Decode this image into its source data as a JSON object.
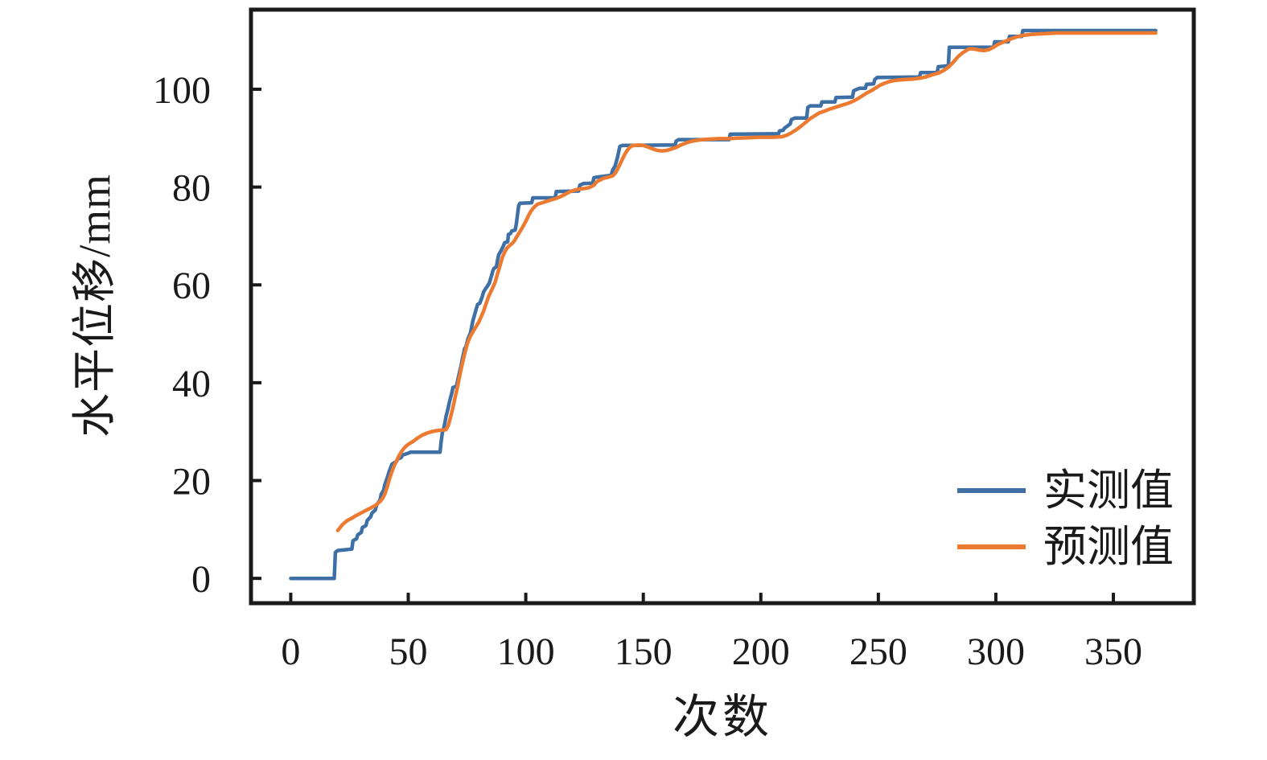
{
  "chart_data": {
    "type": "line",
    "title": "",
    "xlabel": "次数",
    "ylabel": "水平位移/mm",
    "xlim": [
      -17.6,
      384.9
    ],
    "ylim": [
      -5.4,
      116.6
    ],
    "xticks": [
      0,
      50,
      100,
      150,
      200,
      250,
      300,
      350
    ],
    "yticks": [
      0,
      20,
      40,
      60,
      80,
      100
    ],
    "grid": false,
    "legend_position": "lower right",
    "axis_color": "#1a1a1a",
    "series": [
      {
        "name": "实测值",
        "color": "#3e70a6",
        "style": "staircase",
        "points": [
          [
            0,
            0
          ],
          [
            18.5,
            0
          ],
          [
            19,
            5.3
          ],
          [
            20,
            5.7
          ],
          [
            26,
            6
          ],
          [
            26.5,
            7.7
          ],
          [
            28,
            8.1
          ],
          [
            28.5,
            8.9
          ],
          [
            30,
            9.4
          ],
          [
            30.5,
            10.4
          ],
          [
            32,
            10.8
          ],
          [
            32.5,
            11.8
          ],
          [
            34,
            12.6
          ],
          [
            34.5,
            13.3
          ],
          [
            36,
            14
          ],
          [
            36.5,
            15
          ],
          [
            38,
            16
          ],
          [
            38.5,
            17.2
          ],
          [
            39.5,
            18
          ],
          [
            40,
            19.1
          ],
          [
            41,
            20.5
          ],
          [
            42,
            22
          ],
          [
            43,
            23.3
          ],
          [
            43.5,
            23.5
          ],
          [
            45,
            23.9
          ],
          [
            45.5,
            24.4
          ],
          [
            47,
            24.7
          ],
          [
            47.5,
            25.2
          ],
          [
            50,
            25.6
          ],
          [
            51,
            25.8
          ],
          [
            63.5,
            25.8
          ],
          [
            64,
            28
          ],
          [
            64.5,
            29.8
          ],
          [
            65,
            30.5
          ],
          [
            65.5,
            31.6
          ],
          [
            66,
            33
          ],
          [
            67,
            34.9
          ],
          [
            67.5,
            36
          ],
          [
            68.5,
            37.9
          ],
          [
            69,
            39
          ],
          [
            70.5,
            39.3
          ],
          [
            71,
            40.4
          ],
          [
            71.5,
            41.5
          ],
          [
            72.5,
            43.5
          ],
          [
            73,
            44.8
          ],
          [
            74,
            47
          ],
          [
            74.5,
            47.3
          ],
          [
            75.5,
            49.1
          ],
          [
            76.5,
            50.2
          ],
          [
            77,
            51.5
          ],
          [
            77.5,
            52.7
          ],
          [
            78,
            53.5
          ],
          [
            79,
            55.2
          ],
          [
            79.5,
            56
          ],
          [
            80.5,
            56.3
          ],
          [
            81.5,
            57.6
          ],
          [
            82,
            58.5
          ],
          [
            83,
            59.3
          ],
          [
            83.5,
            59.6
          ],
          [
            84.5,
            60.4
          ],
          [
            85,
            61.2
          ],
          [
            85.5,
            62
          ],
          [
            86,
            62.9
          ],
          [
            86.5,
            63.4
          ],
          [
            87.5,
            63.7
          ],
          [
            88,
            65.1
          ],
          [
            88.5,
            66.2
          ],
          [
            89.5,
            67
          ],
          [
            90.5,
            68
          ],
          [
            91,
            68.6
          ],
          [
            92.3,
            68.8
          ],
          [
            92.6,
            70.3
          ],
          [
            93.5,
            70.5
          ],
          [
            94,
            71
          ],
          [
            95.5,
            71.2
          ],
          [
            96,
            72.5
          ],
          [
            96.5,
            74.5
          ],
          [
            97,
            76.2
          ],
          [
            97.5,
            76.7
          ],
          [
            102.5,
            76.8
          ],
          [
            103,
            77.8
          ],
          [
            112.5,
            77.8
          ],
          [
            113,
            79.1
          ],
          [
            122.5,
            79.2
          ],
          [
            123,
            80.4
          ],
          [
            124.5,
            80.7
          ],
          [
            128.5,
            80.8
          ],
          [
            129,
            81.9
          ],
          [
            130,
            82
          ],
          [
            136.3,
            82.4
          ],
          [
            137,
            83.5
          ],
          [
            138,
            84.3
          ],
          [
            139,
            86
          ],
          [
            140,
            88.3
          ],
          [
            141,
            88.5
          ],
          [
            163.5,
            88.6
          ],
          [
            164,
            89.4
          ],
          [
            165,
            89.7
          ],
          [
            186.5,
            89.7
          ],
          [
            187,
            90.8
          ],
          [
            207.5,
            90.9
          ],
          [
            208,
            91.5
          ],
          [
            209.5,
            91.6
          ],
          [
            210,
            92
          ],
          [
            212.5,
            92.9
          ],
          [
            213,
            93.8
          ],
          [
            214.5,
            94.1
          ],
          [
            219.5,
            94.1
          ],
          [
            220,
            96.3
          ],
          [
            221,
            96.6
          ],
          [
            225.5,
            96.6
          ],
          [
            226,
            97.4
          ],
          [
            231.5,
            97.4
          ],
          [
            232,
            98.3
          ],
          [
            239,
            98.4
          ],
          [
            239.5,
            99.7
          ],
          [
            242,
            100.2
          ],
          [
            244.5,
            100.2
          ],
          [
            245,
            101
          ],
          [
            248,
            101.1
          ],
          [
            248.5,
            102
          ],
          [
            249.5,
            102.4
          ],
          [
            267.5,
            102.5
          ],
          [
            268,
            103.4
          ],
          [
            275,
            103.4
          ],
          [
            275.5,
            104.6
          ],
          [
            279.8,
            104.8
          ],
          [
            280.2,
            108.6
          ],
          [
            299,
            108.6
          ],
          [
            299.5,
            109.7
          ],
          [
            305.3,
            109.7
          ],
          [
            305.8,
            110.8
          ],
          [
            311,
            110.8
          ],
          [
            311.5,
            112
          ],
          [
            368,
            112
          ]
        ]
      },
      {
        "name": "预测值",
        "color": "#ec7a31",
        "style": "smooth",
        "points": [
          [
            20,
            9.8
          ],
          [
            22,
            11
          ],
          [
            24,
            11.8
          ],
          [
            26,
            12.3
          ],
          [
            28,
            12.9
          ],
          [
            30,
            13.4
          ],
          [
            32,
            13.9
          ],
          [
            34,
            14.4
          ],
          [
            36,
            14.9
          ],
          [
            38,
            15.7
          ],
          [
            39,
            16.3
          ],
          [
            40,
            17.2
          ],
          [
            41,
            18.6
          ],
          [
            42,
            20.3
          ],
          [
            43,
            21.8
          ],
          [
            44,
            23
          ],
          [
            45,
            24
          ],
          [
            46,
            25
          ],
          [
            47,
            25.8
          ],
          [
            48,
            26.5
          ],
          [
            49,
            27
          ],
          [
            50,
            27.4
          ],
          [
            52,
            28
          ],
          [
            54,
            28.7
          ],
          [
            56,
            29.3
          ],
          [
            58,
            29.7
          ],
          [
            60,
            30
          ],
          [
            62,
            30.2
          ],
          [
            64,
            30.3
          ],
          [
            66,
            30.4
          ],
          [
            67,
            31.2
          ],
          [
            68,
            33
          ],
          [
            69,
            34.9
          ],
          [
            70,
            37.1
          ],
          [
            71,
            39.3
          ],
          [
            72,
            41.7
          ],
          [
            73,
            43.9
          ],
          [
            74,
            45.9
          ],
          [
            75,
            47.8
          ],
          [
            76,
            49.1
          ],
          [
            77,
            50
          ],
          [
            78,
            50.8
          ],
          [
            79,
            51.6
          ],
          [
            80,
            52.4
          ],
          [
            81,
            53.5
          ],
          [
            82,
            54.6
          ],
          [
            83,
            56
          ],
          [
            84,
            57.4
          ],
          [
            85,
            58.5
          ],
          [
            86,
            59.5
          ],
          [
            87,
            60.6
          ],
          [
            88,
            62.3
          ],
          [
            89,
            63.9
          ],
          [
            90,
            65.6
          ],
          [
            91,
            66.7
          ],
          [
            92,
            67.5
          ],
          [
            93,
            68
          ],
          [
            94,
            68.4
          ],
          [
            95,
            68.9
          ],
          [
            96,
            69.7
          ],
          [
            97,
            70.5
          ],
          [
            98,
            71.3
          ],
          [
            99,
            72.1
          ],
          [
            100,
            73
          ],
          [
            101,
            74
          ],
          [
            102,
            74.9
          ],
          [
            103,
            75.6
          ],
          [
            104,
            76.1
          ],
          [
            105,
            76.5
          ],
          [
            107,
            76.8
          ],
          [
            109,
            77.1
          ],
          [
            111,
            77.4
          ],
          [
            113,
            77.7
          ],
          [
            115,
            78.1
          ],
          [
            117,
            78.6
          ],
          [
            119,
            79.1
          ],
          [
            121,
            79.4
          ],
          [
            123,
            79.6
          ],
          [
            125,
            79.7
          ],
          [
            127,
            79.9
          ],
          [
            129,
            80.4
          ],
          [
            130,
            81
          ],
          [
            131,
            81.3
          ],
          [
            133,
            81.8
          ],
          [
            135,
            82
          ],
          [
            137,
            82.3
          ],
          [
            138,
            82.8
          ],
          [
            139,
            83.6
          ],
          [
            140,
            84.6
          ],
          [
            141,
            85.6
          ],
          [
            142,
            86.6
          ],
          [
            143,
            87.4
          ],
          [
            144,
            88
          ],
          [
            145,
            88.4
          ],
          [
            146,
            88.5
          ],
          [
            148,
            88.6
          ],
          [
            150,
            88.5
          ],
          [
            152,
            88.2
          ],
          [
            154,
            87.8
          ],
          [
            156,
            87.5
          ],
          [
            158,
            87.4
          ],
          [
            160,
            87.5
          ],
          [
            162,
            87.8
          ],
          [
            164,
            88.1
          ],
          [
            166,
            88.6
          ],
          [
            168,
            89
          ],
          [
            170,
            89.3
          ],
          [
            172,
            89.5
          ],
          [
            175,
            89.7
          ],
          [
            178,
            89.8
          ],
          [
            182,
            89.9
          ],
          [
            186,
            89.9
          ],
          [
            190,
            90
          ],
          [
            195,
            90.1
          ],
          [
            200,
            90.2
          ],
          [
            205,
            90.2
          ],
          [
            209,
            90.3
          ],
          [
            211,
            90.6
          ],
          [
            213,
            91.1
          ],
          [
            215,
            91.7
          ],
          [
            217,
            92.4
          ],
          [
            219,
            93.2
          ],
          [
            221,
            94
          ],
          [
            223,
            94.6
          ],
          [
            225,
            95.2
          ],
          [
            227,
            95.5
          ],
          [
            229,
            95.9
          ],
          [
            231,
            96.2
          ],
          [
            233,
            96.5
          ],
          [
            235,
            96.8
          ],
          [
            237,
            97.1
          ],
          [
            239,
            97.5
          ],
          [
            241,
            98
          ],
          [
            243,
            98.6
          ],
          [
            245,
            99.2
          ],
          [
            247,
            99.7
          ],
          [
            249,
            100.3
          ],
          [
            251,
            100.9
          ],
          [
            253,
            101.3
          ],
          [
            255,
            101.6
          ],
          [
            257,
            101.8
          ],
          [
            259,
            101.9
          ],
          [
            262,
            102
          ],
          [
            265,
            102.1
          ],
          [
            268,
            102.3
          ],
          [
            270,
            102.5
          ],
          [
            272,
            102.8
          ],
          [
            274,
            103.1
          ],
          [
            276,
            103.4
          ],
          [
            278,
            103.9
          ],
          [
            280,
            104.6
          ],
          [
            282,
            105.6
          ],
          [
            284,
            106.7
          ],
          [
            286,
            107.5
          ],
          [
            288,
            108.1
          ],
          [
            289,
            108.3
          ],
          [
            291,
            108.2
          ],
          [
            293,
            108
          ],
          [
            295,
            107.9
          ],
          [
            297,
            108.1
          ],
          [
            299,
            108.6
          ],
          [
            301,
            109.2
          ],
          [
            303,
            109.6
          ],
          [
            305,
            110
          ],
          [
            307,
            110.4
          ],
          [
            309,
            110.7
          ],
          [
            311,
            111
          ],
          [
            313,
            111.1
          ],
          [
            315,
            111.2
          ],
          [
            318,
            111.3
          ],
          [
            322,
            111.4
          ],
          [
            326,
            111.5
          ],
          [
            332,
            111.5
          ],
          [
            340,
            111.5
          ],
          [
            350,
            111.5
          ],
          [
            360,
            111.5
          ],
          [
            368,
            111.5
          ]
        ]
      }
    ]
  },
  "legend": {
    "items": [
      {
        "label": "实测值",
        "color": "#3e70a6"
      },
      {
        "label": "预测值",
        "color": "#ec7a31"
      }
    ]
  }
}
